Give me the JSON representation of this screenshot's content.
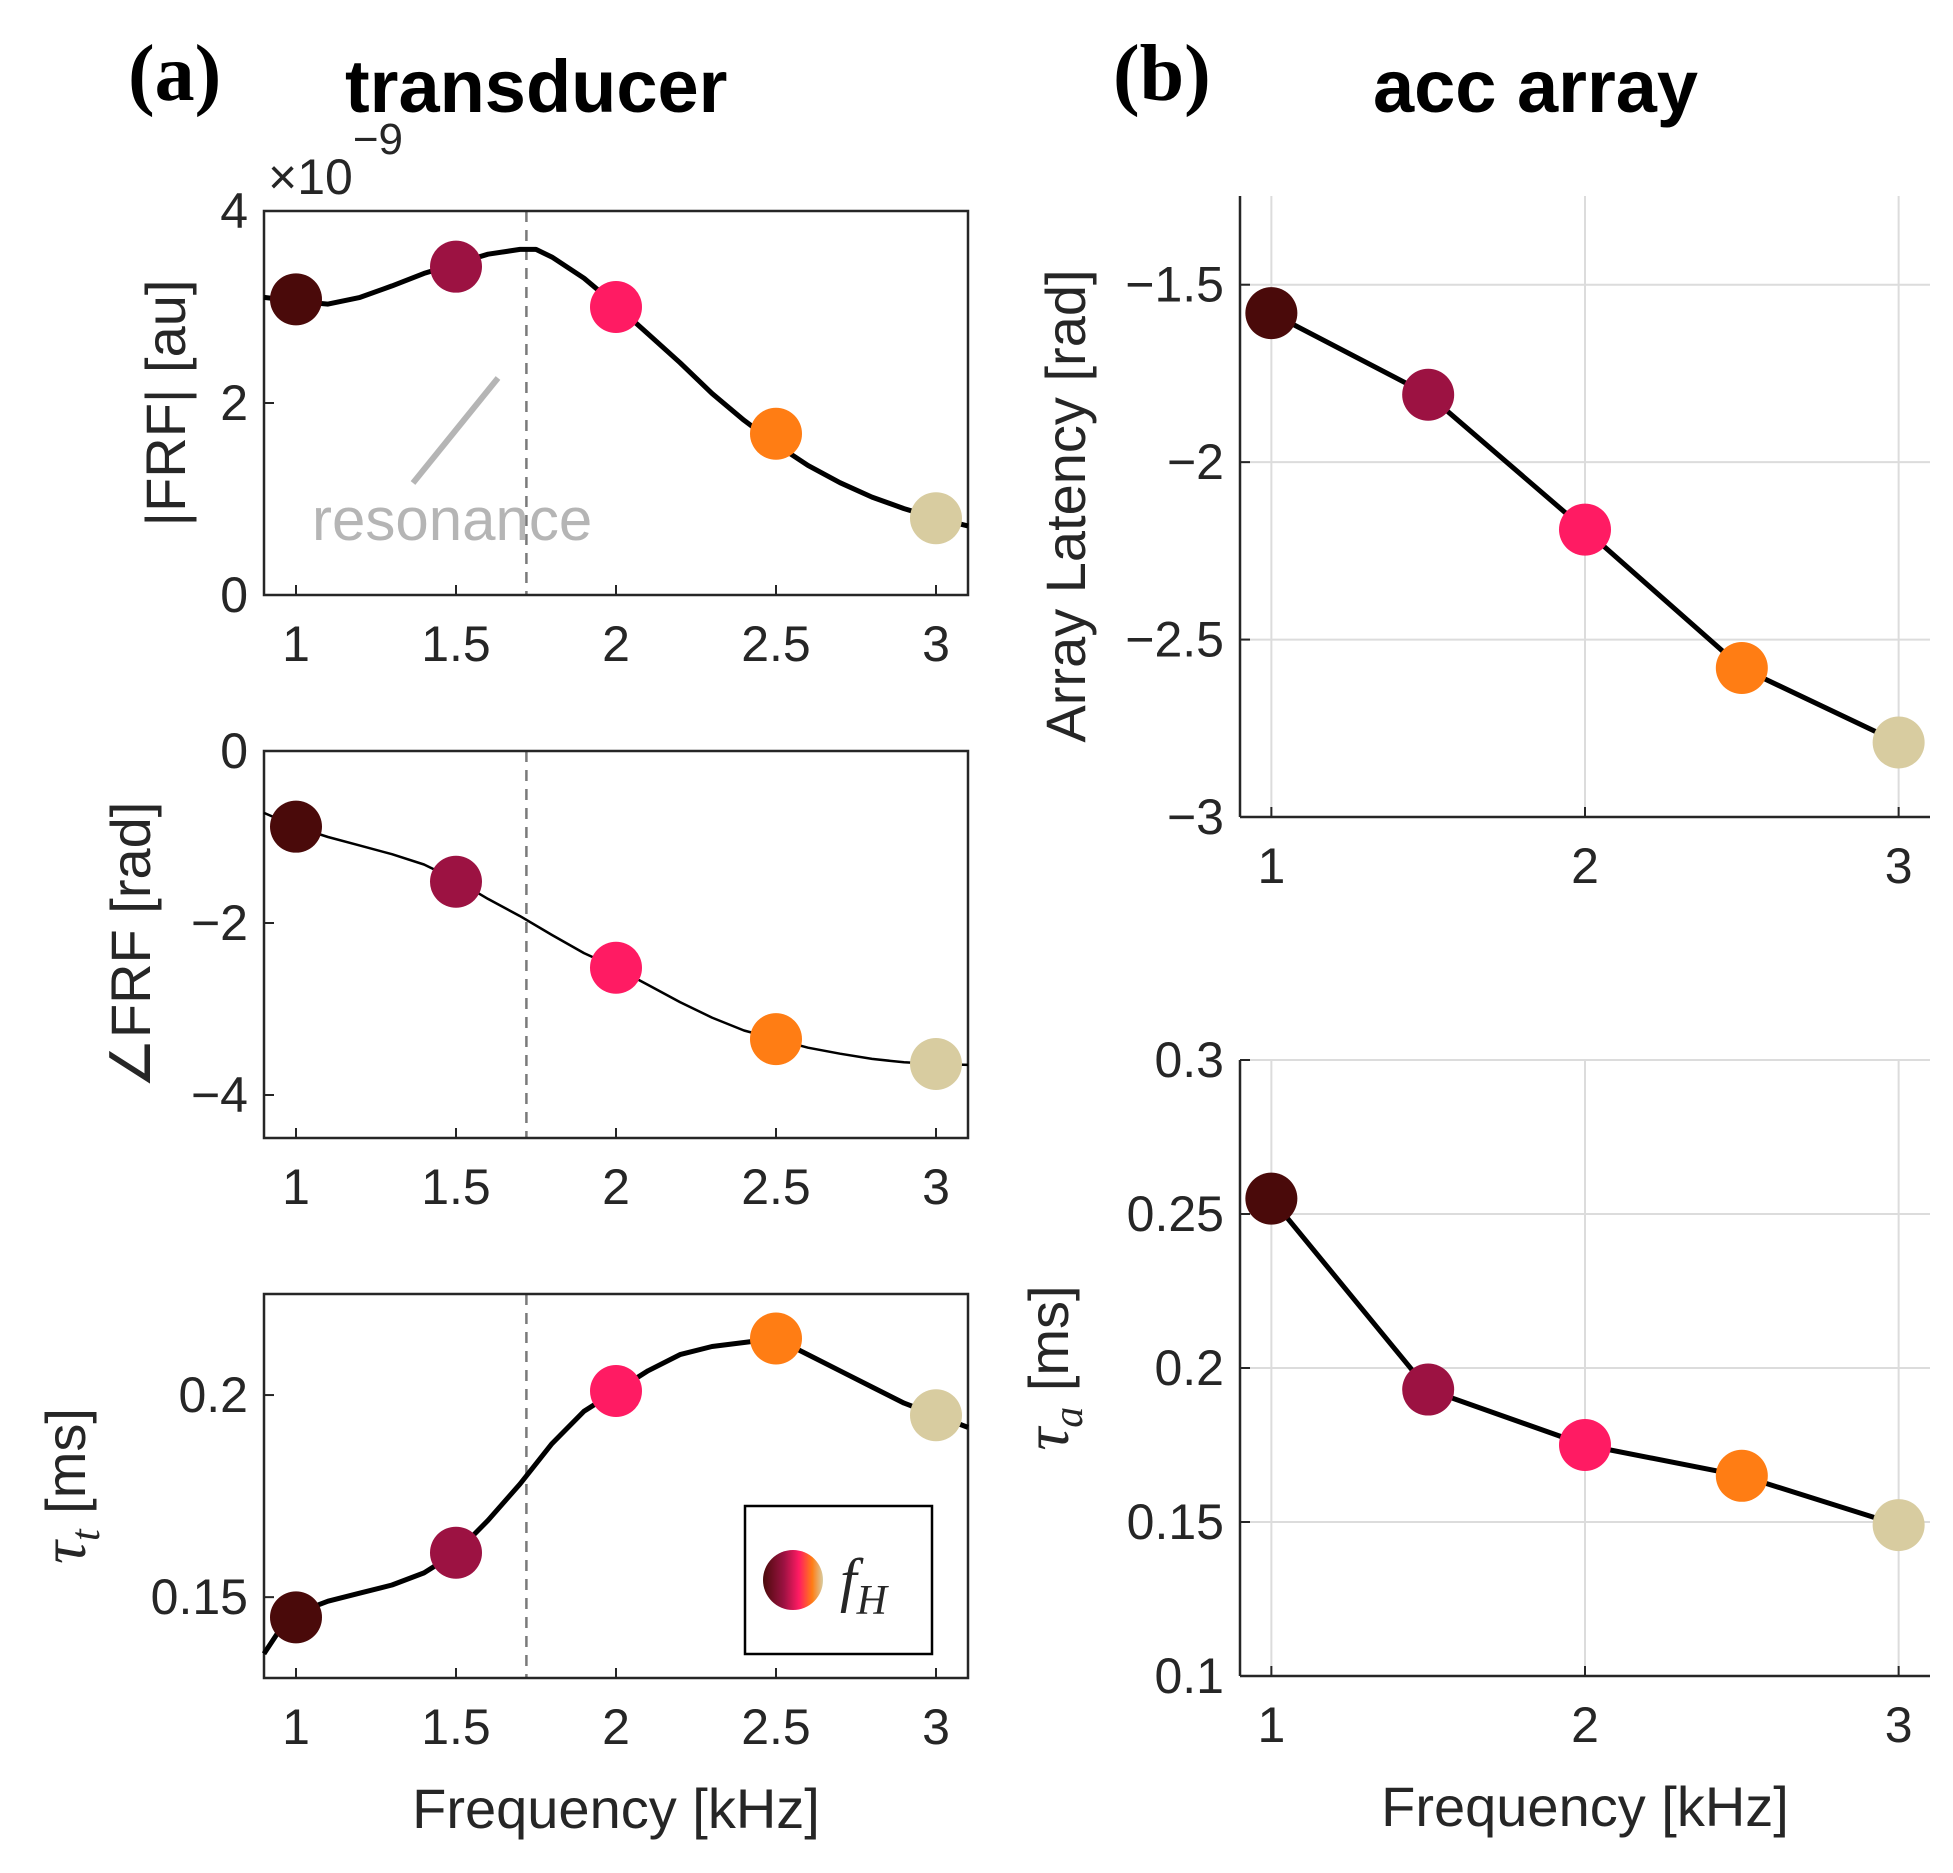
{
  "colors": {
    "axis": "#262626",
    "curve": "#000000",
    "grid": "#dcdcdc",
    "annotation": "#b5b5b5",
    "points": [
      "#4a0a0a",
      "#9c1242",
      "#ff1b63",
      "#ff7d14",
      "#d8cca0"
    ]
  },
  "panel_a": {
    "label": "(a)",
    "title": "transducer",
    "resonance_label": "resonance"
  },
  "panel_b": {
    "label": "(b)",
    "title": "acc array"
  },
  "legend": {
    "icon": "gradient-circle-icon",
    "symbol": "f",
    "subscript": "H"
  },
  "chart_data": [
    {
      "id": "frf-magnitude",
      "type": "line",
      "ylabel": "|FRF| [au]",
      "xlabel": "",
      "xlim": [
        0.9,
        3.1
      ],
      "ylim": [
        0,
        4
      ],
      "xticks": [
        1,
        1.5,
        2,
        2.5,
        3
      ],
      "xtick_labels": [
        "1",
        "1.5",
        "2",
        "2.5",
        "3"
      ],
      "yticks": [
        0,
        2,
        4
      ],
      "ytick_labels": [
        "0",
        "2",
        "4"
      ],
      "exponent": {
        "base": "×10",
        "power": "−9"
      },
      "grid": false,
      "resonance_x": 1.72,
      "curve": {
        "x": [
          0.9,
          1.0,
          1.1,
          1.2,
          1.3,
          1.4,
          1.5,
          1.6,
          1.7,
          1.75,
          1.8,
          1.9,
          2.0,
          2.1,
          2.2,
          2.3,
          2.4,
          2.5,
          2.6,
          2.7,
          2.8,
          2.9,
          3.0,
          3.1
        ],
        "y": [
          3.1,
          3.06,
          3.03,
          3.1,
          3.22,
          3.35,
          3.45,
          3.55,
          3.6,
          3.6,
          3.52,
          3.3,
          3.02,
          2.72,
          2.42,
          2.1,
          1.82,
          1.57,
          1.35,
          1.17,
          1.02,
          0.9,
          0.8,
          0.72
        ]
      },
      "points": {
        "x": [
          1,
          1.5,
          2,
          2.5,
          3
        ],
        "y": [
          3.08,
          3.42,
          3.0,
          1.68,
          0.8
        ]
      }
    },
    {
      "id": "frf-phase",
      "type": "line",
      "ylabel": "∠FRF [rad]",
      "xlabel": "",
      "xlim": [
        0.9,
        3.1
      ],
      "ylim": [
        -4.5,
        0
      ],
      "xticks": [
        1,
        1.5,
        2,
        2.5,
        3
      ],
      "xtick_labels": [
        "1",
        "1.5",
        "2",
        "2.5",
        "3"
      ],
      "yticks": [
        -4,
        -2,
        0
      ],
      "ytick_labels": [
        "−4",
        "−2",
        "0"
      ],
      "grid": false,
      "resonance_x": 1.72,
      "curve": {
        "x": [
          0.9,
          1.0,
          1.1,
          1.2,
          1.3,
          1.4,
          1.5,
          1.6,
          1.7,
          1.8,
          1.9,
          2.0,
          2.1,
          2.2,
          2.3,
          2.4,
          2.5,
          2.6,
          2.7,
          2.8,
          2.9,
          3.0,
          3.1
        ],
        "y": [
          -0.72,
          -0.88,
          -1.0,
          -1.1,
          -1.2,
          -1.32,
          -1.5,
          -1.72,
          -1.92,
          -2.14,
          -2.35,
          -2.52,
          -2.72,
          -2.92,
          -3.1,
          -3.25,
          -3.35,
          -3.45,
          -3.52,
          -3.58,
          -3.62,
          -3.64,
          -3.65
        ]
      },
      "points": {
        "x": [
          1,
          1.5,
          2,
          2.5,
          3
        ],
        "y": [
          -0.88,
          -1.52,
          -2.52,
          -3.35,
          -3.64
        ]
      }
    },
    {
      "id": "tau-t",
      "type": "line",
      "ylabel": "τ_t [ms]",
      "xlabel": "Frequency [kHz]",
      "xlim": [
        0.9,
        3.1
      ],
      "ylim": [
        0.13,
        0.225
      ],
      "xticks": [
        1,
        1.5,
        2,
        2.5,
        3
      ],
      "xtick_labels": [
        "1",
        "1.5",
        "2",
        "2.5",
        "3"
      ],
      "yticks": [
        0.15,
        0.2
      ],
      "ytick_labels": [
        "0.15",
        "0.2"
      ],
      "grid": false,
      "resonance_x": 1.72,
      "curve": {
        "x": [
          0.9,
          0.95,
          1.0,
          1.1,
          1.2,
          1.3,
          1.4,
          1.5,
          1.6,
          1.7,
          1.8,
          1.9,
          2.0,
          2.1,
          2.2,
          2.3,
          2.4,
          2.5,
          2.6,
          2.7,
          2.8,
          2.9,
          3.0,
          3.1
        ],
        "y": [
          0.136,
          0.142,
          0.146,
          0.149,
          0.151,
          0.153,
          0.156,
          0.161,
          0.169,
          0.178,
          0.188,
          0.196,
          0.201,
          0.206,
          0.21,
          0.212,
          0.213,
          0.214,
          0.21,
          0.206,
          0.202,
          0.198,
          0.195,
          0.192
        ]
      },
      "points": {
        "x": [
          1,
          1.5,
          2,
          2.5,
          3
        ],
        "y": [
          0.145,
          0.161,
          0.201,
          0.214,
          0.195
        ]
      }
    },
    {
      "id": "array-latency",
      "type": "line",
      "ylabel": "Array Latency [rad]",
      "xlabel": "",
      "xlim": [
        0.9,
        3.1
      ],
      "ylim": [
        -3,
        -1.25
      ],
      "xticks": [
        1,
        2,
        3
      ],
      "xtick_labels": [
        "1",
        "2",
        "3"
      ],
      "yticks": [
        -3,
        -2.5,
        -2,
        -1.5
      ],
      "ytick_labels": [
        "−3",
        "−2.5",
        "−2",
        "−1.5"
      ],
      "grid": true,
      "points": {
        "x": [
          1,
          1.5,
          2,
          2.5,
          3
        ],
        "y": [
          -1.58,
          -1.81,
          -2.19,
          -2.58,
          -2.79
        ]
      }
    },
    {
      "id": "tau-a",
      "type": "line",
      "ylabel": "τ_a [ms]",
      "xlabel": "Frequency [kHz]",
      "xlim": [
        0.9,
        3.1
      ],
      "ylim": [
        0.1,
        0.3
      ],
      "xticks": [
        1,
        2,
        3
      ],
      "xtick_labels": [
        "1",
        "2",
        "3"
      ],
      "yticks": [
        0.1,
        0.15,
        0.2,
        0.25,
        0.3
      ],
      "ytick_labels": [
        "0.1",
        "0.15",
        "0.2",
        "0.25",
        "0.3"
      ],
      "grid": true,
      "points": {
        "x": [
          1,
          1.5,
          2,
          2.5,
          3
        ],
        "y": [
          0.255,
          0.193,
          0.175,
          0.165,
          0.149
        ]
      }
    }
  ]
}
